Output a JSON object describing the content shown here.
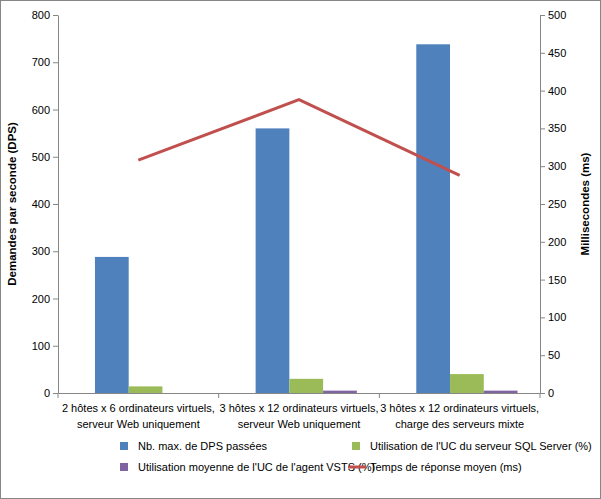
{
  "chart_data": {
    "type": "bar",
    "categories": [
      "2 hôtes x 6 ordinateurs virtuels,\nserveur Web uniquement",
      "3 hôtes x 12 ordinateurs virtuels,\nserveur Web uniquement",
      "3 hôtes x 12 ordinateurs virtuels,\ncharge des serveurs mixte"
    ],
    "y_label": "Demandes par seconde (DPS)",
    "y2_label": "Millisecondes (ms)",
    "ylim": [
      0,
      800
    ],
    "yticks": [
      0,
      100,
      200,
      300,
      400,
      500,
      600,
      700,
      800
    ],
    "y2lim": [
      0,
      500
    ],
    "y2ticks": [
      0,
      50,
      100,
      150,
      200,
      250,
      300,
      350,
      400,
      450,
      500
    ],
    "grid": false,
    "legend": "bottom",
    "series": [
      {
        "name": "Nb. max. de DPS passées",
        "type": "bar",
        "color": "#4f81bd",
        "values": [
          288,
          560,
          738
        ]
      },
      {
        "name": "Utilisation de l'UC du serveur SQL Server (%)",
        "type": "bar",
        "color": "#9bbb59",
        "values": [
          14,
          30,
          40
        ]
      },
      {
        "name": "Utilisation moyenne de l'UC de l'agent VSTS (%)",
        "type": "bar",
        "color": "#8064a2",
        "values": [
          0,
          5,
          5
        ]
      },
      {
        "name": "Temps de réponse moyen (ms)",
        "type": "line",
        "axis": "y2",
        "color": "#c0504d",
        "values": [
          308,
          388,
          288
        ]
      }
    ]
  }
}
